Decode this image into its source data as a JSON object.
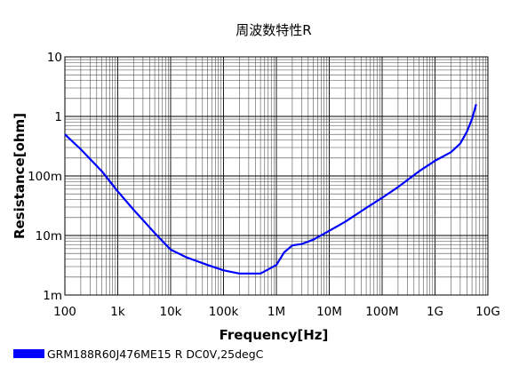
{
  "chart_data": {
    "type": "line",
    "title": "周波数特性R",
    "xlabel": "Frequency[Hz]",
    "ylabel": "Resistance[ohm]",
    "x_scale": "log",
    "y_scale": "log",
    "xlim": [
      100,
      10000000000
    ],
    "ylim": [
      0.001,
      10
    ],
    "grid": true,
    "legend_position": "bottom-left",
    "x_ticks": [
      {
        "value": 100,
        "label": "100"
      },
      {
        "value": 1000,
        "label": "1k"
      },
      {
        "value": 10000,
        "label": "10k"
      },
      {
        "value": 100000,
        "label": "100k"
      },
      {
        "value": 1000000,
        "label": "1M"
      },
      {
        "value": 10000000,
        "label": "10M"
      },
      {
        "value": 100000000,
        "label": "100M"
      },
      {
        "value": 1000000000,
        "label": "1G"
      },
      {
        "value": 10000000000,
        "label": "10G"
      }
    ],
    "y_ticks": [
      {
        "value": 0.001,
        "label": "1m"
      },
      {
        "value": 0.01,
        "label": "10m"
      },
      {
        "value": 0.1,
        "label": "100m"
      },
      {
        "value": 1,
        "label": "1"
      },
      {
        "value": 10,
        "label": "10"
      }
    ],
    "series": [
      {
        "name": "GRM188R60J476ME15 R DC0V,25degC",
        "color": "#0000ff",
        "x": [
          100,
          200,
          500,
          1000,
          2000,
          5000,
          10000,
          20000,
          50000,
          100000,
          200000,
          500000,
          1000000,
          1400000,
          2000000,
          3000000,
          5000000,
          10000000,
          20000000,
          50000000,
          100000000,
          200000000,
          500000000,
          1000000000,
          2000000000,
          3000000000,
          4000000000,
          5000000000,
          6000000000
        ],
        "y": [
          0.5,
          0.28,
          0.12,
          0.055,
          0.027,
          0.011,
          0.0058,
          0.0043,
          0.0032,
          0.0026,
          0.0023,
          0.0023,
          0.0032,
          0.0052,
          0.0068,
          0.0072,
          0.0085,
          0.012,
          0.017,
          0.029,
          0.043,
          0.065,
          0.12,
          0.18,
          0.25,
          0.35,
          0.55,
          0.9,
          1.6
        ]
      }
    ]
  }
}
